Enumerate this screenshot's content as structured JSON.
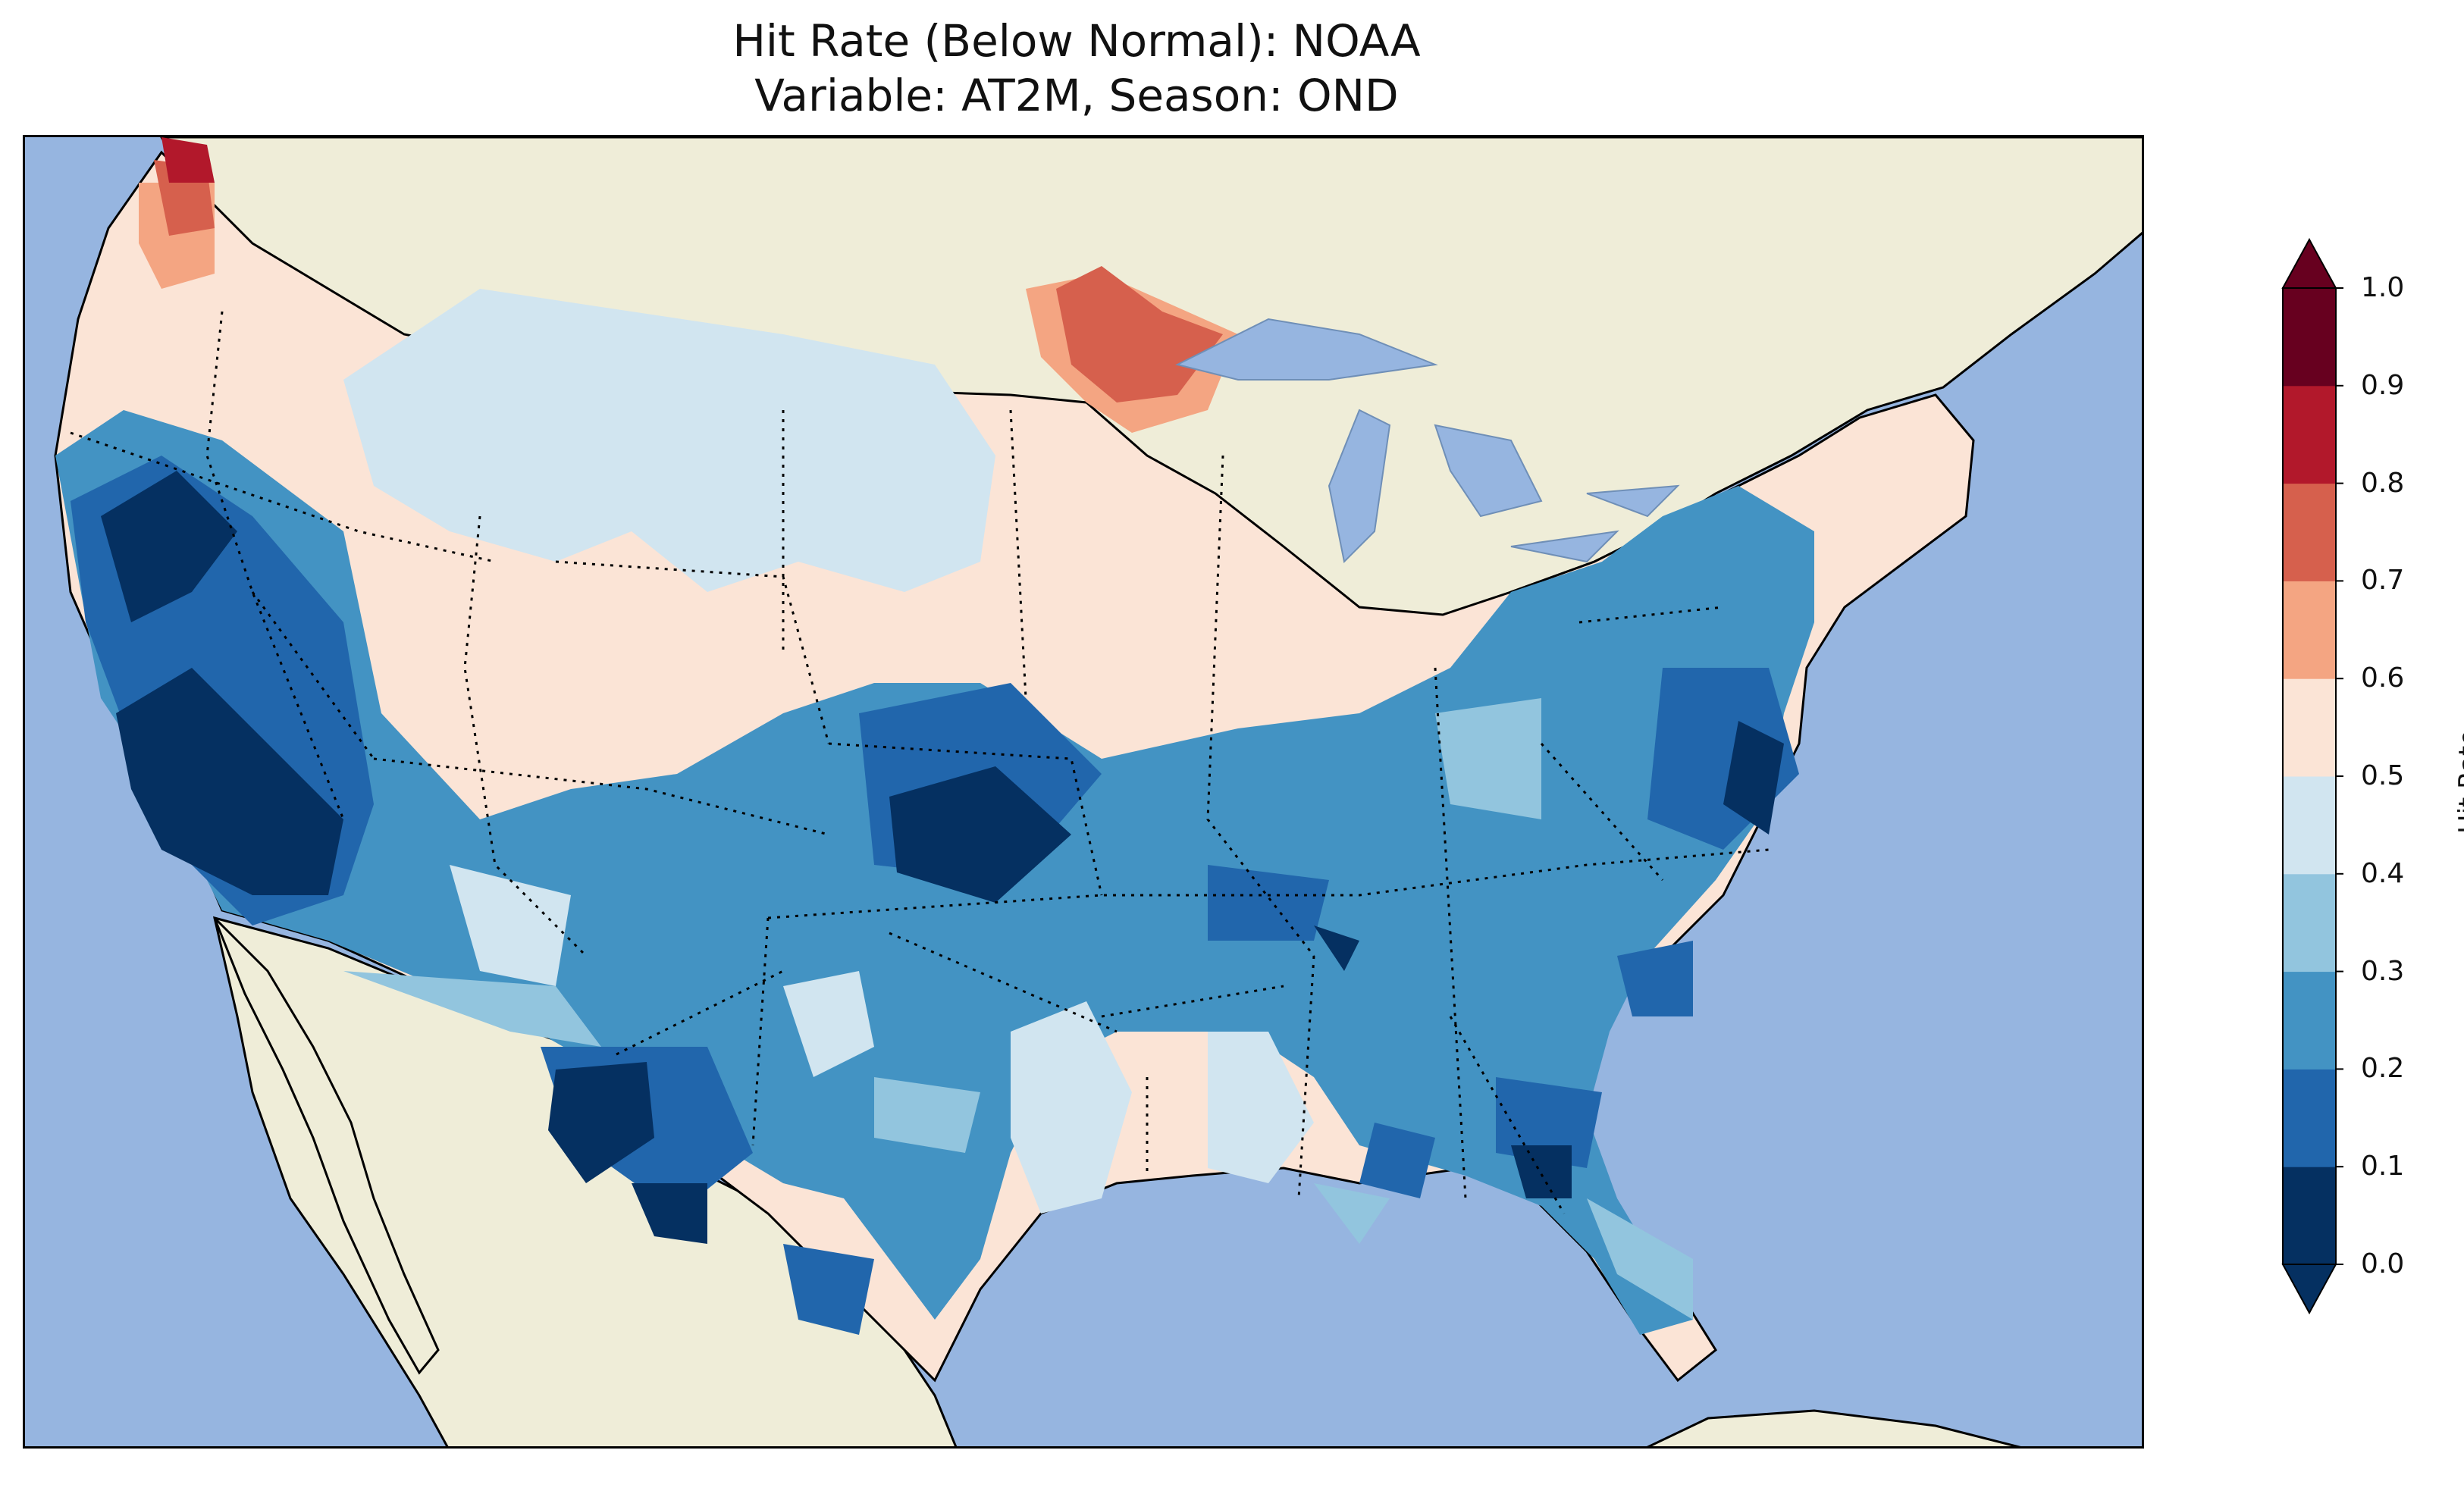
{
  "title": {
    "line1": "Hit Rate (Below Normal): NOAA",
    "line2": "Variable: AT2M, Season: OND"
  },
  "colorbar": {
    "label": "Hit Rate",
    "ticks": [
      "0.0",
      "0.1",
      "0.2",
      "0.3",
      "0.4",
      "0.5",
      "0.6",
      "0.7",
      "0.8",
      "0.9",
      "1.0"
    ],
    "levels": [
      0.0,
      0.1,
      0.2,
      0.3,
      0.4,
      0.5,
      0.6,
      0.7,
      0.8,
      0.9,
      1.0
    ],
    "colors": [
      "#053061",
      "#2166ac",
      "#4393c3",
      "#92c5de",
      "#d1e5f0",
      "#fbe4d6",
      "#f4a582",
      "#d6604d",
      "#b2182b",
      "#67001f"
    ],
    "extend": "both"
  },
  "map": {
    "ocean_color": "#96b5e0",
    "land_color": "#efedd8",
    "projection": "PlateCarree",
    "region": "Contiguous United States"
  }
}
